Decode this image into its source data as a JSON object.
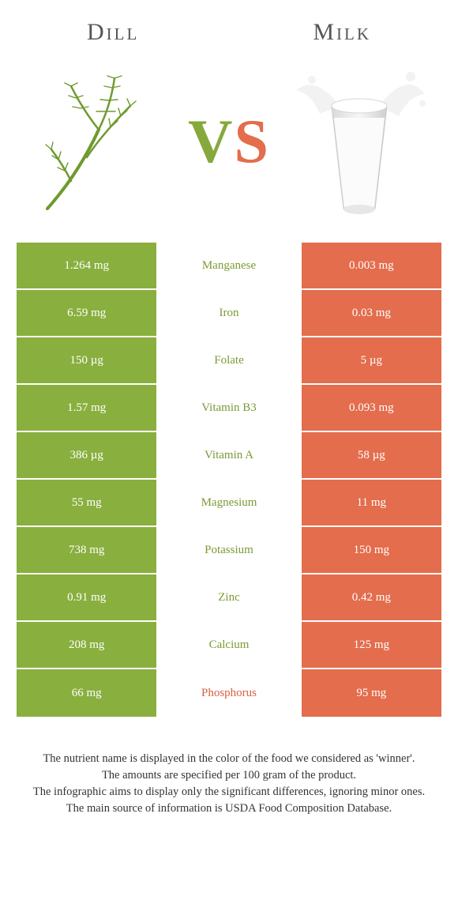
{
  "colors": {
    "left_bg": "#89af3e",
    "right_bg": "#e36d4d",
    "mid_win_left": "#7a9a35",
    "mid_win_right": "#d85f40",
    "page_bg": "#ffffff",
    "heading": "#555555",
    "body_text": "#333333"
  },
  "header": {
    "left_title": "Dill",
    "right_title": "Milk",
    "vs_v": "V",
    "vs_s": "S"
  },
  "table": {
    "rows": [
      {
        "left": "1.264 mg",
        "label": "Manganese",
        "right": "0.003 mg",
        "winner": "left"
      },
      {
        "left": "6.59 mg",
        "label": "Iron",
        "right": "0.03 mg",
        "winner": "left"
      },
      {
        "left": "150 µg",
        "label": "Folate",
        "right": "5 µg",
        "winner": "left"
      },
      {
        "left": "1.57 mg",
        "label": "Vitamin B3",
        "right": "0.093 mg",
        "winner": "left"
      },
      {
        "left": "386 µg",
        "label": "Vitamin A",
        "right": "58 µg",
        "winner": "left"
      },
      {
        "left": "55 mg",
        "label": "Magnesium",
        "right": "11 mg",
        "winner": "left"
      },
      {
        "left": "738 mg",
        "label": "Potassium",
        "right": "150 mg",
        "winner": "left"
      },
      {
        "left": "0.91 mg",
        "label": "Zinc",
        "right": "0.42 mg",
        "winner": "left"
      },
      {
        "left": "208 mg",
        "label": "Calcium",
        "right": "125 mg",
        "winner": "left"
      },
      {
        "left": "66 mg",
        "label": "Phosphorus",
        "right": "95 mg",
        "winner": "right"
      }
    ]
  },
  "footer": {
    "line1": "The nutrient name is displayed in the color of the food we considered as 'winner'.",
    "line2": "The amounts are specified per 100 gram of the product.",
    "line3": "The infographic aims to display only the significant differences, ignoring minor ones.",
    "line4": "The main source of information is USDA Food Composition Database."
  }
}
